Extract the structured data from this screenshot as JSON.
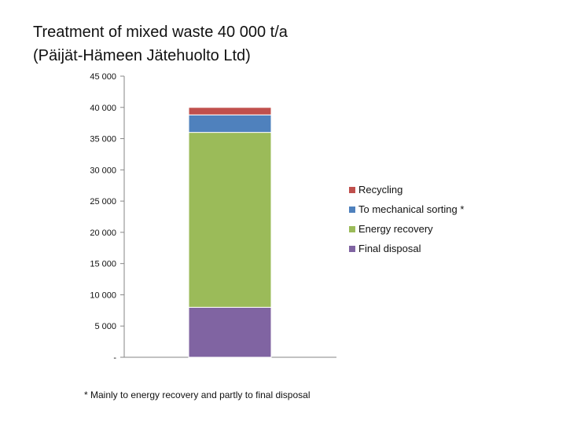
{
  "title": {
    "line1": "Treatment of mixed waste 40 000 t/a",
    "line2": "(Päijät-Hämeen Jätehuolto Ltd)"
  },
  "footnote": "* Mainly to energy recovery and partly to final disposal",
  "chart_data": {
    "type": "bar",
    "stacked": true,
    "categories": [
      ""
    ],
    "ylim": [
      0,
      45000
    ],
    "yticks": [
      0,
      5000,
      10000,
      15000,
      20000,
      25000,
      30000,
      35000,
      40000,
      45000
    ],
    "ytick_labels": [
      "-",
      "5 000",
      "10 000",
      "15 000",
      "20 000",
      "25 000",
      "30 000",
      "35 000",
      "40 000",
      "45 000"
    ],
    "grid": false,
    "legend_position": "right",
    "series": [
      {
        "name": "Final disposal",
        "values": [
          8000
        ],
        "color": "#8064a2"
      },
      {
        "name": "Energy recovery",
        "values": [
          28000
        ],
        "color": "#9bbb59"
      },
      {
        "name": "To mechanical sorting *",
        "values": [
          2800
        ],
        "color": "#4f81bd"
      },
      {
        "name": "Recycling",
        "values": [
          1200
        ],
        "color": "#c0504d"
      }
    ],
    "legend_order": [
      "Recycling",
      "To mechanical sorting *",
      "Energy recovery",
      "Final disposal"
    ]
  }
}
